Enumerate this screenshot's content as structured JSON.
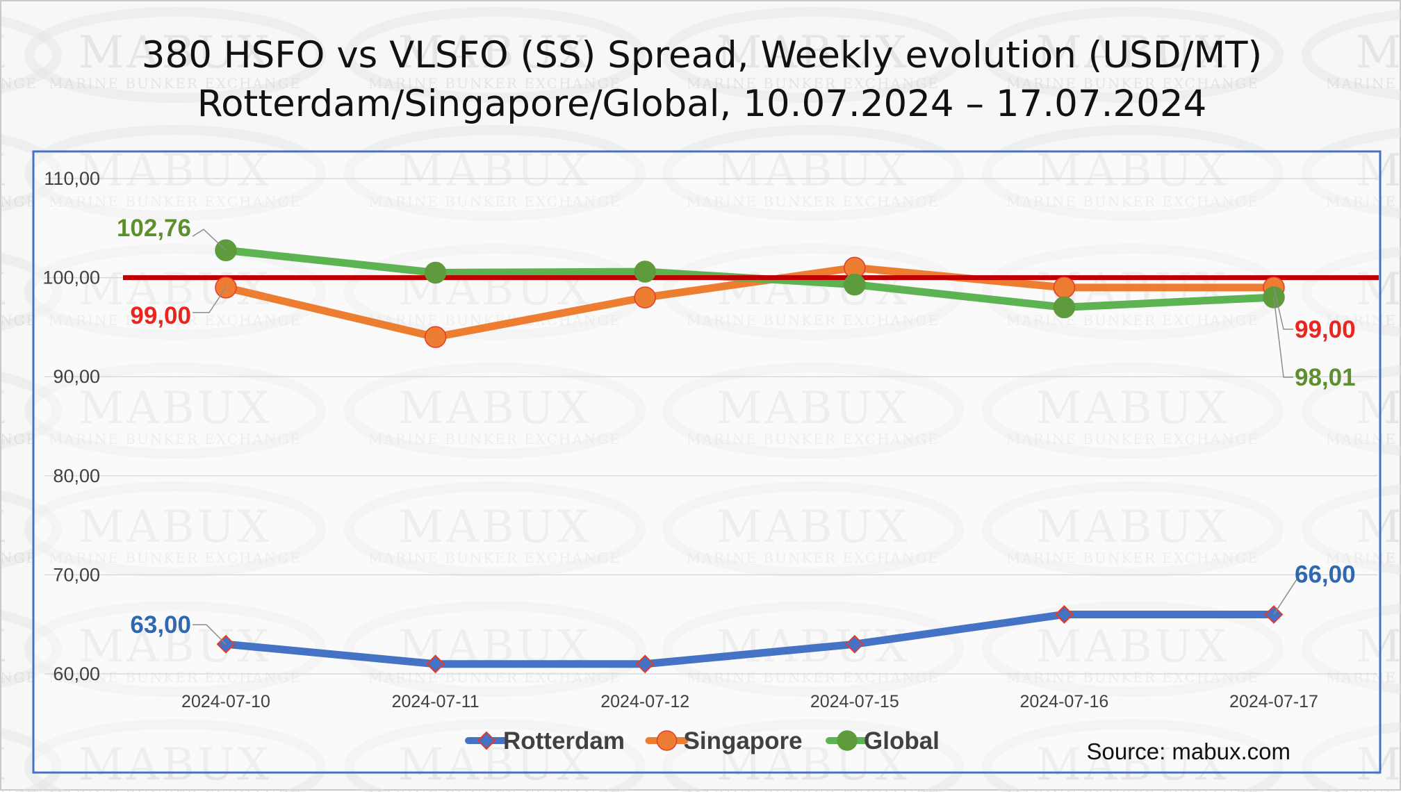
{
  "watermark": {
    "name": "MABUX",
    "subtitle": "MARINE BUNKER EXCHANGE"
  },
  "source": "Source: mabux.com",
  "chart_data": {
    "type": "line",
    "title": "380 HSFO vs VLSFO (SS) Spread, Weekly evolution (USD/MT)",
    "subtitle": "Rotterdam/Singapore/Global, 10.07.2024 – 17.07.2024",
    "categories": [
      "2024-07-10",
      "2024-07-11",
      "2024-07-12",
      "2024-07-15",
      "2024-07-16",
      "2024-07-17"
    ],
    "y_ticks": [
      "60,00",
      "70,00",
      "80,00",
      "90,00",
      "100,00",
      "110,00"
    ],
    "ylim": [
      60,
      110
    ],
    "reference_line": {
      "value": 100,
      "color": "#c00000"
    },
    "series": [
      {
        "name": "Rotterdam",
        "color": "#4472c4",
        "marker": "diamond",
        "marker_color": "#4472c4",
        "marker_border": "#e23b2e",
        "values": [
          63,
          61,
          61,
          63,
          66,
          66
        ]
      },
      {
        "name": "Singapore",
        "color": "#ed7d31",
        "marker": "circle",
        "marker_color": "#ed7d31",
        "marker_border": "#e23b2e",
        "values": [
          99,
          94,
          98,
          101,
          99,
          99
        ]
      },
      {
        "name": "Global",
        "color": "#5db351",
        "marker": "circle",
        "marker_color": "#5e9b3c",
        "marker_border": "#5e9b3c",
        "values": [
          102.76,
          100.5,
          100.6,
          99.3,
          97,
          98.01
        ]
      }
    ],
    "data_labels": [
      {
        "text": "102,76",
        "series": "Global",
        "point": 0,
        "color": "#5e8f2f"
      },
      {
        "text": "99,00",
        "series": "Singapore",
        "point": 0,
        "color": "#e8261f"
      },
      {
        "text": "63,00",
        "series": "Rotterdam",
        "point": 0,
        "color": "#2f67b1"
      },
      {
        "text": "99,00",
        "series": "Singapore",
        "point": 5,
        "color": "#e8261f"
      },
      {
        "text": "98,01",
        "series": "Global",
        "point": 5,
        "color": "#5e8f2f"
      },
      {
        "text": "66,00",
        "series": "Rotterdam",
        "point": 5,
        "color": "#2f67b1"
      }
    ],
    "legend": {
      "position": "bottom",
      "entries": [
        "Rotterdam",
        "Singapore",
        "Global"
      ]
    }
  }
}
